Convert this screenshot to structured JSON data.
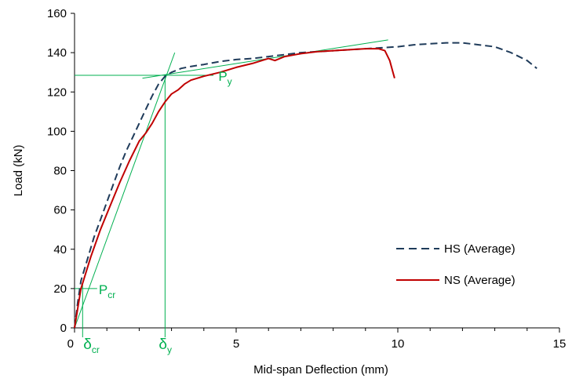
{
  "chart_data": {
    "type": "line",
    "title": "",
    "xlabel": "Mid-span Deflection (mm)",
    "ylabel": "Load (kN)",
    "xlim": [
      0,
      15
    ],
    "ylim": [
      0,
      160
    ],
    "x_ticks": [
      0,
      5,
      10,
      15
    ],
    "y_ticks": [
      0,
      20,
      40,
      60,
      80,
      100,
      120,
      140,
      160
    ],
    "grid": false,
    "legend_position": "right",
    "series": [
      {
        "name": "HS (Average)",
        "color": "#1f3b5a",
        "style": "dashed",
        "points": [
          [
            0,
            0
          ],
          [
            0.1,
            13
          ],
          [
            0.2,
            24
          ],
          [
            0.4,
            35
          ],
          [
            0.6,
            46
          ],
          [
            0.8,
            55
          ],
          [
            1.0,
            64
          ],
          [
            1.2,
            73
          ],
          [
            1.4,
            82
          ],
          [
            1.6,
            90
          ],
          [
            1.8,
            97
          ],
          [
            2.0,
            104
          ],
          [
            2.2,
            111
          ],
          [
            2.4,
            118
          ],
          [
            2.6,
            124
          ],
          [
            2.8,
            128
          ],
          [
            3.0,
            130
          ],
          [
            3.3,
            132
          ],
          [
            3.6,
            133
          ],
          [
            4.0,
            134
          ],
          [
            4.5,
            135.5
          ],
          [
            5.0,
            136.5
          ],
          [
            5.5,
            137
          ],
          [
            6.0,
            138
          ],
          [
            6.5,
            139
          ],
          [
            7.0,
            140
          ],
          [
            7.5,
            140.5
          ],
          [
            8.0,
            141
          ],
          [
            8.5,
            141.5
          ],
          [
            9.0,
            142
          ],
          [
            9.5,
            142.5
          ],
          [
            10.0,
            143
          ],
          [
            10.5,
            144
          ],
          [
            11.0,
            144.5
          ],
          [
            11.5,
            145
          ],
          [
            12.0,
            145
          ],
          [
            12.5,
            144
          ],
          [
            13.0,
            143
          ],
          [
            13.5,
            140
          ],
          [
            14.0,
            136
          ],
          [
            14.3,
            132
          ]
        ]
      },
      {
        "name": "NS (Average)",
        "color": "#c00000",
        "style": "solid",
        "points": [
          [
            0,
            0
          ],
          [
            0.1,
            10
          ],
          [
            0.2,
            20
          ],
          [
            0.5,
            36
          ],
          [
            0.8,
            50
          ],
          [
            1.1,
            62
          ],
          [
            1.4,
            74
          ],
          [
            1.7,
            85
          ],
          [
            2.0,
            95
          ],
          [
            2.2,
            99
          ],
          [
            2.4,
            104
          ],
          [
            2.6,
            110
          ],
          [
            2.8,
            115
          ],
          [
            3.0,
            119
          ],
          [
            3.2,
            121
          ],
          [
            3.4,
            124
          ],
          [
            3.6,
            126
          ],
          [
            3.8,
            127
          ],
          [
            4.0,
            128
          ],
          [
            4.5,
            130
          ],
          [
            5.0,
            132.5
          ],
          [
            5.5,
            134.5
          ],
          [
            6.0,
            137
          ],
          [
            6.2,
            136
          ],
          [
            6.5,
            138
          ],
          [
            7.0,
            139.5
          ],
          [
            7.5,
            140.5
          ],
          [
            8.0,
            141
          ],
          [
            8.5,
            141.5
          ],
          [
            9.0,
            142
          ],
          [
            9.4,
            142
          ],
          [
            9.6,
            141
          ],
          [
            9.75,
            136
          ],
          [
            9.85,
            130
          ],
          [
            9.9,
            127
          ]
        ]
      }
    ],
    "annotations": {
      "color": "#00b050",
      "p_cr_label": "P",
      "p_cr_sub": "cr",
      "p_y_label": "P",
      "p_y_sub": "y",
      "delta_cr_label": "δ",
      "delta_cr_sub": "cr",
      "delta_y_label": "δ",
      "delta_y_sub": "y",
      "p_cr": 20,
      "p_y": 128.5,
      "delta_cr": 0.25,
      "delta_y": 2.8,
      "elastic_line": [
        [
          0,
          0
        ],
        [
          3.1,
          140
        ]
      ],
      "post_yield_line": [
        [
          2.1,
          127
        ],
        [
          9.7,
          146.5
        ]
      ]
    }
  }
}
